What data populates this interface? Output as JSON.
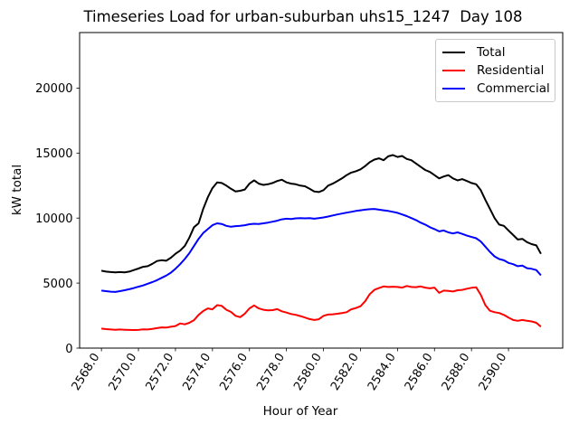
{
  "chart_data": {
    "type": "line",
    "title": "Timeseries Load for urban-suburban uhs15_1247  Day 108",
    "xlabel": "Hour of Year",
    "ylabel": "kW total",
    "xlim": [
      2566.82,
      2592.93
    ],
    "ylim": [
      0,
      24270
    ],
    "grid": false,
    "legend_position": "upper-right",
    "xticks": {
      "values": [
        2568,
        2570,
        2572,
        2574,
        2576,
        2578,
        2580,
        2582,
        2584,
        2586,
        2588,
        2590
      ],
      "labels": [
        "2568.0",
        "2570.0",
        "2572.0",
        "2574.0",
        "2576.0",
        "2578.0",
        "2580.0",
        "2582.0",
        "2584.0",
        "2586.0",
        "2588.0",
        "2590.0"
      ]
    },
    "yticks": {
      "values": [
        0,
        5000,
        10000,
        15000,
        20000
      ],
      "labels": [
        "0",
        "5000",
        "10000",
        "15000",
        "20000"
      ]
    },
    "x": [
      2568.0,
      2568.25,
      2568.5,
      2568.75,
      2569.0,
      2569.25,
      2569.5,
      2569.75,
      2570.0,
      2570.25,
      2570.5,
      2570.75,
      2571.0,
      2571.25,
      2571.5,
      2571.75,
      2572.0,
      2572.25,
      2572.5,
      2572.75,
      2573.0,
      2573.25,
      2573.5,
      2573.75,
      2574.0,
      2574.25,
      2574.5,
      2574.75,
      2575.0,
      2575.25,
      2575.5,
      2575.75,
      2576.0,
      2576.25,
      2576.5,
      2576.75,
      2577.0,
      2577.25,
      2577.5,
      2577.75,
      2578.0,
      2578.25,
      2578.5,
      2578.75,
      2579.0,
      2579.25,
      2579.5,
      2579.75,
      2580.0,
      2580.25,
      2580.5,
      2580.75,
      2581.0,
      2581.25,
      2581.5,
      2581.75,
      2582.0,
      2582.25,
      2582.5,
      2582.75,
      2583.0,
      2583.25,
      2583.5,
      2583.75,
      2584.0,
      2584.25,
      2584.5,
      2584.75,
      2585.0,
      2585.25,
      2585.5,
      2585.75,
      2586.0,
      2586.25,
      2586.5,
      2586.75,
      2587.0,
      2587.25,
      2587.5,
      2587.75,
      2588.0,
      2588.25,
      2588.5,
      2588.75,
      2589.0,
      2589.25,
      2589.5,
      2589.75,
      2590.0,
      2590.25,
      2590.5,
      2590.75,
      2591.0,
      2591.25,
      2591.5,
      2591.75
    ],
    "series": [
      {
        "name": "Total",
        "color": "#000000",
        "values": [
          5950,
          5880,
          5850,
          5820,
          5850,
          5830,
          5880,
          6000,
          6120,
          6250,
          6300,
          6480,
          6700,
          6760,
          6720,
          6950,
          7250,
          7500,
          7850,
          8500,
          9300,
          9600,
          10700,
          11600,
          12300,
          12750,
          12700,
          12500,
          12250,
          12050,
          12100,
          12200,
          12650,
          12900,
          12650,
          12550,
          12600,
          12700,
          12850,
          12950,
          12750,
          12650,
          12600,
          12500,
          12450,
          12250,
          12050,
          12000,
          12150,
          12500,
          12650,
          12850,
          13050,
          13300,
          13500,
          13600,
          13750,
          14000,
          14300,
          14500,
          14600,
          14450,
          14750,
          14850,
          14700,
          14780,
          14550,
          14450,
          14200,
          13950,
          13700,
          13550,
          13300,
          13050,
          13200,
          13300,
          13050,
          12900,
          13000,
          12850,
          12700,
          12600,
          12150,
          11400,
          10700,
          10000,
          9500,
          9400,
          9050,
          8700,
          8350,
          8400,
          8150,
          8000,
          7900,
          7250
        ]
      },
      {
        "name": "Residential",
        "color": "#ff0000",
        "values": [
          1500,
          1460,
          1430,
          1410,
          1430,
          1410,
          1400,
          1390,
          1400,
          1440,
          1430,
          1480,
          1540,
          1590,
          1580,
          1640,
          1700,
          1900,
          1830,
          1950,
          2150,
          2550,
          2850,
          3050,
          2980,
          3300,
          3250,
          2950,
          2780,
          2480,
          2380,
          2650,
          3050,
          3280,
          3050,
          2950,
          2900,
          2920,
          3000,
          2830,
          2730,
          2620,
          2560,
          2460,
          2350,
          2230,
          2160,
          2220,
          2480,
          2580,
          2600,
          2640,
          2700,
          2760,
          2980,
          3080,
          3220,
          3600,
          4150,
          4480,
          4620,
          4740,
          4700,
          4720,
          4700,
          4650,
          4780,
          4700,
          4690,
          4740,
          4650,
          4600,
          4650,
          4250,
          4420,
          4400,
          4350,
          4450,
          4480,
          4570,
          4640,
          4680,
          4100,
          3300,
          2870,
          2760,
          2700,
          2550,
          2350,
          2160,
          2100,
          2160,
          2100,
          2050,
          1950,
          1650
        ]
      },
      {
        "name": "Commercial",
        "color": "#0000ff",
        "values": [
          4420,
          4380,
          4340,
          4320,
          4380,
          4450,
          4530,
          4620,
          4720,
          4820,
          4950,
          5080,
          5220,
          5400,
          5580,
          5800,
          6100,
          6450,
          6850,
          7300,
          7850,
          8400,
          8850,
          9150,
          9450,
          9600,
          9550,
          9400,
          9330,
          9380,
          9400,
          9450,
          9530,
          9560,
          9550,
          9600,
          9650,
          9720,
          9800,
          9900,
          9950,
          9930,
          9980,
          10000,
          9980,
          10000,
          9950,
          10000,
          10050,
          10120,
          10200,
          10280,
          10350,
          10420,
          10480,
          10550,
          10600,
          10650,
          10680,
          10700,
          10650,
          10600,
          10550,
          10480,
          10400,
          10280,
          10150,
          10000,
          9850,
          9650,
          9500,
          9300,
          9150,
          8980,
          9050,
          8900,
          8820,
          8900,
          8780,
          8650,
          8550,
          8450,
          8200,
          7800,
          7400,
          7050,
          6850,
          6750,
          6550,
          6450,
          6300,
          6350,
          6150,
          6100,
          6000,
          5600
        ]
      }
    ]
  }
}
